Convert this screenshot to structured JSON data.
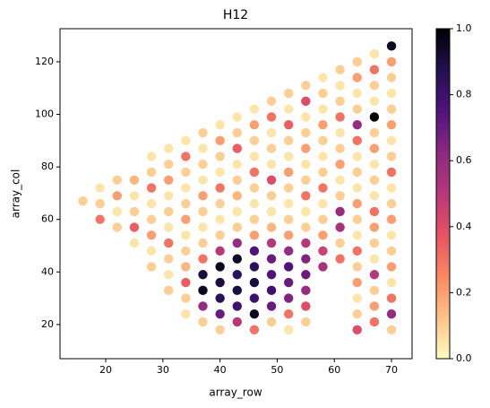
{
  "chart_data": {
    "type": "scatter",
    "title": "H12",
    "x_label": "array_row",
    "y_label": "array_col",
    "xlim": [
      12.0,
      73.6
    ],
    "ylim": [
      7.0,
      132.6
    ],
    "xticks": [
      20,
      30,
      40,
      50,
      60,
      70
    ],
    "yticks": [
      20,
      40,
      60,
      80,
      100,
      120
    ],
    "colormap": [
      "#fcfdbf",
      "#fec287",
      "#fb8861",
      "#e75263",
      "#b73779",
      "#8c2981",
      "#51127c",
      "#221150",
      "#000004"
    ],
    "colorbar": {
      "lim": [
        0,
        1
      ],
      "ticks": [
        {
          "value": 0,
          "label": "0.0"
        },
        {
          "value": 0.2,
          "label": "0.2"
        },
        {
          "value": 0.4,
          "label": "0.4"
        },
        {
          "value": 0.6,
          "label": "0.6"
        },
        {
          "value": 0.8,
          "label": "0.8"
        },
        {
          "value": 1,
          "label": "1.0"
        }
      ]
    },
    "x": [
      16,
      19,
      19,
      19,
      22,
      22,
      22,
      22,
      25,
      25,
      25,
      25,
      25,
      28,
      28,
      28,
      28,
      28,
      28,
      28,
      28,
      31,
      31,
      31,
      31,
      31,
      31,
      31,
      31,
      31,
      31,
      34,
      34,
      34,
      34,
      34,
      34,
      34,
      34,
      34,
      34,
      34,
      34,
      37,
      37,
      37,
      37,
      37,
      37,
      37,
      37,
      37,
      37,
      37,
      37,
      37,
      40,
      40,
      40,
      40,
      40,
      40,
      40,
      40,
      40,
      40,
      40,
      40,
      40,
      40,
      43,
      43,
      43,
      43,
      43,
      43,
      43,
      43,
      43,
      43,
      43,
      43,
      43,
      43,
      46,
      46,
      46,
      46,
      46,
      46,
      46,
      46,
      46,
      46,
      46,
      46,
      46,
      46,
      46,
      49,
      49,
      49,
      49,
      49,
      49,
      49,
      49,
      49,
      49,
      49,
      49,
      49,
      49,
      49,
      52,
      52,
      52,
      52,
      52,
      52,
      52,
      52,
      52,
      52,
      52,
      52,
      52,
      52,
      52,
      52,
      55,
      55,
      55,
      55,
      55,
      55,
      55,
      55,
      55,
      55,
      55,
      55,
      55,
      55,
      55,
      55,
      58,
      58,
      58,
      58,
      58,
      58,
      58,
      58,
      58,
      58,
      58,
      58,
      58,
      61,
      61,
      61,
      61,
      61,
      61,
      61,
      61,
      61,
      61,
      61,
      61,
      61,
      64,
      64,
      64,
      64,
      64,
      64,
      64,
      64,
      64,
      64,
      64,
      64,
      64,
      64,
      64,
      64,
      64,
      64,
      67,
      67,
      67,
      67,
      67,
      67,
      67,
      67,
      67,
      67,
      67,
      67,
      67,
      67,
      67,
      67,
      67,
      67,
      70,
      70,
      70,
      70,
      70,
      70,
      70,
      70,
      70,
      70,
      70,
      70,
      70,
      70,
      70,
      70,
      70,
      70,
      70
    ],
    "y": [
      67,
      60,
      66,
      72,
      57,
      63,
      69,
      75,
      51,
      57,
      63,
      69,
      75,
      42,
      48,
      54,
      60,
      66,
      72,
      78,
      84,
      33,
      39,
      45,
      51,
      57,
      63,
      69,
      75,
      81,
      87,
      24,
      30,
      36,
      42,
      48,
      54,
      60,
      66,
      72,
      78,
      84,
      90,
      21,
      27,
      33,
      39,
      45,
      51,
      57,
      63,
      69,
      75,
      81,
      87,
      93,
      18,
      24,
      30,
      36,
      42,
      48,
      54,
      60,
      66,
      72,
      78,
      84,
      90,
      96,
      21,
      27,
      33,
      39,
      45,
      51,
      57,
      63,
      69,
      75,
      81,
      87,
      93,
      99,
      18,
      24,
      30,
      36,
      42,
      48,
      54,
      60,
      66,
      72,
      78,
      84,
      90,
      96,
      102,
      21,
      27,
      33,
      39,
      45,
      51,
      57,
      63,
      69,
      75,
      81,
      87,
      93,
      99,
      105,
      18,
      24,
      30,
      36,
      42,
      48,
      54,
      60,
      66,
      72,
      78,
      84,
      90,
      96,
      102,
      108,
      21,
      27,
      33,
      39,
      45,
      51,
      57,
      63,
      69,
      75,
      81,
      87,
      93,
      99,
      105,
      111,
      42,
      48,
      54,
      60,
      66,
      72,
      78,
      84,
      90,
      96,
      102,
      108,
      114,
      45,
      51,
      57,
      63,
      69,
      75,
      81,
      87,
      93,
      99,
      105,
      111,
      117,
      18,
      24,
      30,
      36,
      42,
      48,
      54,
      60,
      66,
      72,
      78,
      84,
      90,
      96,
      102,
      108,
      114,
      120,
      21,
      27,
      33,
      39,
      45,
      51,
      57,
      63,
      69,
      75,
      81,
      87,
      93,
      99,
      105,
      111,
      117,
      123,
      18,
      24,
      30,
      36,
      42,
      48,
      54,
      60,
      66,
      72,
      78,
      84,
      90,
      96,
      102,
      108,
      114,
      120,
      126
    ],
    "values": [
      0.1,
      0.3,
      0.1,
      0.05,
      0.1,
      0.05,
      0.2,
      0.1,
      0.05,
      0.35,
      0.1,
      0.05,
      0.15,
      0.1,
      0.05,
      0.2,
      0.1,
      0.05,
      0.3,
      0.1,
      0.05,
      0.1,
      0.05,
      0.1,
      0.3,
      0.05,
      0.1,
      0.05,
      0.2,
      0.1,
      0.05,
      0.05,
      0.1,
      0.35,
      0.15,
      0.1,
      0.05,
      0.2,
      0.1,
      0.05,
      0.1,
      0.3,
      0.05,
      0.1,
      0.6,
      0.95,
      0.9,
      0.3,
      0.1,
      0.05,
      0.1,
      0.2,
      0.05,
      0.1,
      0.05,
      0.1,
      0.1,
      0.7,
      0.85,
      0.9,
      0.95,
      0.5,
      0.1,
      0.05,
      0.1,
      0.3,
      0.05,
      0.1,
      0.2,
      0.05,
      0.5,
      0.8,
      0.9,
      0.85,
      0.95,
      0.6,
      0.1,
      0.05,
      0.15,
      0.1,
      0.05,
      0.35,
      0.1,
      0.05,
      0.3,
      0.95,
      0.8,
      0.9,
      0.85,
      0.75,
      0.2,
      0.1,
      0.05,
      0.1,
      0.3,
      0.05,
      0.1,
      0.2,
      0.05,
      0.1,
      0.7,
      0.8,
      0.75,
      0.7,
      0.5,
      0.15,
      0.05,
      0.1,
      0.4,
      0.05,
      0.1,
      0.05,
      0.3,
      0.1,
      0.05,
      0.3,
      0.65,
      0.7,
      0.75,
      0.6,
      0.2,
      0.1,
      0.05,
      0.1,
      0.2,
      0.05,
      0.1,
      0.35,
      0.05,
      0.1,
      0.1,
      0.4,
      0.6,
      0.7,
      0.65,
      0.5,
      0.1,
      0.05,
      0.3,
      0.1,
      0.05,
      0.2,
      0.1,
      0.05,
      0.4,
      0.1,
      0.55,
      0.45,
      0.2,
      0.1,
      0.05,
      0.3,
      0.1,
      0.05,
      0.1,
      0.2,
      0.05,
      0.1,
      0.05,
      0.3,
      0.1,
      0.55,
      0.6,
      0.1,
      0.05,
      0.2,
      0.1,
      0.05,
      0.3,
      0.1,
      0.05,
      0.1,
      0.4,
      0.1,
      0.05,
      0.2,
      0.1,
      0.3,
      0.05,
      0.1,
      0.2,
      0.05,
      0.1,
      0.05,
      0.3,
      0.6,
      0.1,
      0.05,
      0.2,
      0.1,
      0.3,
      0.2,
      0.1,
      0.5,
      0.05,
      0.1,
      0.2,
      0.3,
      0.05,
      0.1,
      0.05,
      0.2,
      0.1,
      1.0,
      0.05,
      0.1,
      0.3,
      0.05,
      0.1,
      0.6,
      0.3,
      0.05,
      0.2,
      0.1,
      0.05,
      0.2,
      0.1,
      0.05,
      0.3,
      0.1,
      0.05,
      0.2,
      0.1,
      0.05,
      0.1,
      0.2,
      0.95
    ]
  }
}
